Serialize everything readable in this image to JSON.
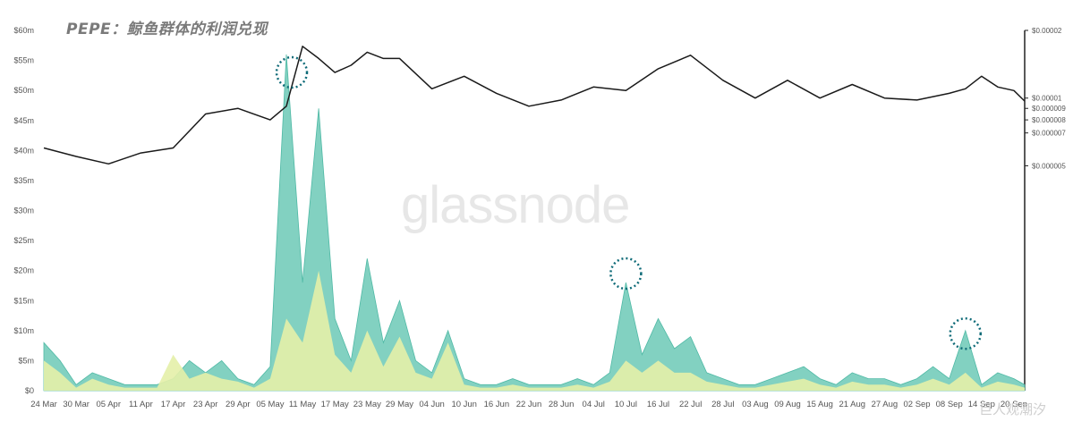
{
  "chart_data": {
    "type": "area",
    "title": "PEPE：鲸鱼群体的利润兑现",
    "watermark": "glassnode",
    "corner_badge": "巨人观潮汐",
    "colors": {
      "price_line": "#1a1a1a",
      "profit_outer": "#6cc9b6",
      "profit_inner": "#e4f0a8",
      "highlight_circle": "#0f6b78",
      "axis_text": "#555555",
      "title": "#7a7a7a"
    },
    "x_tick_labels": [
      "24 Mar",
      "30 Mar",
      "05 Apr",
      "11 Apr",
      "17 Apr",
      "23 Apr",
      "29 Apr",
      "05 May",
      "11 May",
      "17 May",
      "23 May",
      "29 May",
      "04 Jun",
      "10 Jun",
      "16 Jun",
      "22 Jun",
      "28 Jun",
      "04 Jul",
      "10 Jul",
      "16 Jul",
      "22 Jul",
      "28 Jul",
      "03 Aug",
      "09 Aug",
      "15 Aug",
      "21 Aug",
      "27 Aug",
      "02 Sep",
      "08 Sep",
      "14 Sep",
      "20 Sep"
    ],
    "left_axis": {
      "unit": "USD",
      "ylim": [
        0,
        60
      ],
      "tick_labels": [
        "$0",
        "$5m",
        "$10m",
        "$15m",
        "$20m",
        "$25m",
        "$30m",
        "$35m",
        "$40m",
        "$45m",
        "$50m",
        "$55m",
        "$60m"
      ],
      "tick_values": [
        0,
        5,
        10,
        15,
        20,
        25,
        30,
        35,
        40,
        45,
        50,
        55,
        60
      ]
    },
    "right_axis": {
      "scale": "log",
      "ylim": [
        5e-07,
        2e-05
      ],
      "tick_labels": [
        "$0.000005",
        "$0.000007",
        "$0.000008",
        "$0.000009",
        "$0.00001",
        "$0.00002"
      ],
      "tick_values": [
        5e-06,
        7e-06,
        8e-06,
        9e-06,
        1e-05,
        2e-05
      ]
    },
    "series": [
      {
        "axis": "right",
        "style": "line",
        "x": [
          "24 Mar",
          "30 Mar",
          "05 Apr",
          "11 Apr",
          "17 Apr",
          "23 Apr",
          "29 Apr",
          "05 May",
          "08 May",
          "11 May",
          "14 May",
          "17 May",
          "20 May",
          "23 May",
          "26 May",
          "29 May",
          "04 Jun",
          "10 Jun",
          "16 Jun",
          "22 Jun",
          "28 Jun",
          "04 Jul",
          "10 Jul",
          "16 Jul",
          "22 Jul",
          "28 Jul",
          "03 Aug",
          "09 Aug",
          "15 Aug",
          "21 Aug",
          "27 Aug",
          "02 Sep",
          "08 Sep",
          "11 Sep",
          "14 Sep",
          "17 Sep",
          "20 Sep",
          "22 Sep"
        ],
        "values": [
          6e-06,
          5.5e-06,
          5.1e-06,
          5.7e-06,
          6e-06,
          8.5e-06,
          9e-06,
          8e-06,
          9.2e-06,
          1.7e-05,
          1.5e-05,
          1.3e-05,
          1.4e-05,
          1.6e-05,
          1.5e-05,
          1.5e-05,
          1.1e-05,
          1.25e-05,
          1.05e-05,
          9.2e-06,
          9.8e-06,
          1.12e-05,
          1.08e-05,
          1.35e-05,
          1.55e-05,
          1.2e-05,
          1e-05,
          1.2e-05,
          1e-05,
          1.15e-05,
          1e-05,
          9.8e-06,
          1.05e-05,
          1.1e-05,
          1.25e-05,
          1.12e-05,
          1.08e-05,
          9.7e-06
        ]
      },
      {
        "name": "",
        "axis": "left",
        "style": "area",
        "x": [
          "24 Mar",
          "27 Mar",
          "30 Mar",
          "02 Apr",
          "05 Apr",
          "08 Apr",
          "11 Apr",
          "14 Apr",
          "17 Apr",
          "20 Apr",
          "23 Apr",
          "26 Apr",
          "29 Apr",
          "02 May",
          "05 May",
          "08 May",
          "11 May",
          "14 May",
          "17 May",
          "20 May",
          "23 May",
          "26 May",
          "29 May",
          "01 Jun",
          "04 Jun",
          "07 Jun",
          "10 Jun",
          "13 Jun",
          "16 Jun",
          "19 Jun",
          "22 Jun",
          "25 Jun",
          "28 Jun",
          "01 Jul",
          "04 Jul",
          "07 Jul",
          "10 Jul",
          "13 Jul",
          "16 Jul",
          "19 Jul",
          "22 Jul",
          "25 Jul",
          "28 Jul",
          "31 Jul",
          "03 Aug",
          "06 Aug",
          "09 Aug",
          "12 Aug",
          "15 Aug",
          "18 Aug",
          "21 Aug",
          "24 Aug",
          "27 Aug",
          "30 Aug",
          "02 Sep",
          "05 Sep",
          "08 Sep",
          "11 Sep",
          "14 Sep",
          "17 Sep",
          "20 Sep",
          "22 Sep"
        ],
        "values": [
          8,
          5,
          1,
          3,
          2,
          1,
          1,
          1,
          2,
          5,
          3,
          5,
          2,
          1,
          4,
          56,
          18,
          47,
          12,
          5,
          22,
          8,
          15,
          5,
          3,
          10,
          2,
          1,
          1,
          2,
          1,
          1,
          1,
          2,
          1,
          3,
          18,
          6,
          12,
          7,
          9,
          3,
          2,
          1,
          1,
          2,
          3,
          4,
          2,
          1,
          3,
          2,
          2,
          1,
          2,
          4,
          2,
          10,
          1,
          3,
          2,
          1
        ]
      },
      {
        "name": "",
        "axis": "left",
        "style": "area",
        "x": [
          "24 Mar",
          "27 Mar",
          "30 Mar",
          "02 Apr",
          "05 Apr",
          "08 Apr",
          "11 Apr",
          "14 Apr",
          "17 Apr",
          "20 Apr",
          "23 Apr",
          "26 Apr",
          "29 Apr",
          "02 May",
          "05 May",
          "08 May",
          "11 May",
          "14 May",
          "17 May",
          "20 May",
          "23 May",
          "26 May",
          "29 May",
          "01 Jun",
          "04 Jun",
          "07 Jun",
          "10 Jun",
          "13 Jun",
          "16 Jun",
          "19 Jun",
          "22 Jun",
          "25 Jun",
          "28 Jun",
          "01 Jul",
          "04 Jul",
          "07 Jul",
          "10 Jul",
          "13 Jul",
          "16 Jul",
          "19 Jul",
          "22 Jul",
          "25 Jul",
          "28 Jul",
          "31 Jul",
          "03 Aug",
          "06 Aug",
          "09 Aug",
          "12 Aug",
          "15 Aug",
          "18 Aug",
          "21 Aug",
          "24 Aug",
          "27 Aug",
          "30 Aug",
          "02 Sep",
          "05 Sep",
          "08 Sep",
          "11 Sep",
          "14 Sep",
          "17 Sep",
          "20 Sep",
          "22 Sep"
        ],
        "values": [
          5,
          3,
          0.5,
          2,
          1,
          0.5,
          0.5,
          0.5,
          6,
          2,
          3,
          2,
          1.5,
          0.5,
          2,
          12,
          8,
          20,
          6,
          3,
          10,
          4,
          9,
          3,
          2,
          8,
          1,
          0.5,
          0.5,
          1,
          0.5,
          0.5,
          0.5,
          1,
          0.5,
          1.5,
          5,
          3,
          5,
          3,
          3,
          1.5,
          1,
          0.5,
          0.5,
          1,
          1.5,
          2,
          1,
          0.5,
          1.5,
          1,
          1,
          0.5,
          1,
          2,
          1,
          3,
          0.5,
          1.5,
          1,
          0.5
        ]
      }
    ],
    "highlights": [
      {
        "x": "09 May",
        "y": 53
      },
      {
        "x": "10 Jul",
        "y": 19.5
      },
      {
        "x": "11 Sep",
        "y": 9.5
      }
    ]
  }
}
